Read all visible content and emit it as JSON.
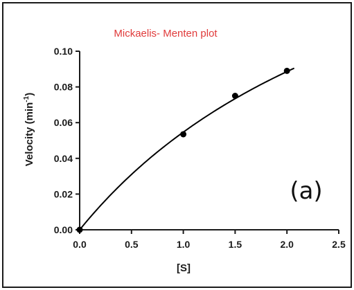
{
  "chart_data": {
    "type": "scatter",
    "title": "Mickaelis- Menten plot",
    "xlabel": "[S]",
    "ylabel": "Velocity (min",
    "ylabel_superscript": "-1",
    "ylabel_suffix": ")",
    "annotation": "(a)",
    "xlim": [
      0,
      2.5
    ],
    "ylim": [
      0,
      0.1
    ],
    "x_ticks": [
      "0.0",
      "0.5",
      "1.0",
      "1.5",
      "2.0",
      "2.5"
    ],
    "y_ticks": [
      "0.00",
      "0.02",
      "0.04",
      "0.06",
      "0.08",
      "0.10"
    ],
    "grid": false,
    "series": [
      {
        "points": [
          {
            "x": 0.0,
            "y": 0.0
          },
          {
            "x": 1.0,
            "y": 0.0535
          },
          {
            "x": 1.5,
            "y": 0.075
          },
          {
            "x": 2.0,
            "y": 0.089
          }
        ],
        "fit": {
          "model": "michaelis-menten",
          "vmax": 0.233,
          "km": 3.26,
          "x_range": [
            0,
            2.07
          ]
        }
      }
    ],
    "colors": {
      "title": "#e03a3a",
      "data": "#000000"
    }
  }
}
